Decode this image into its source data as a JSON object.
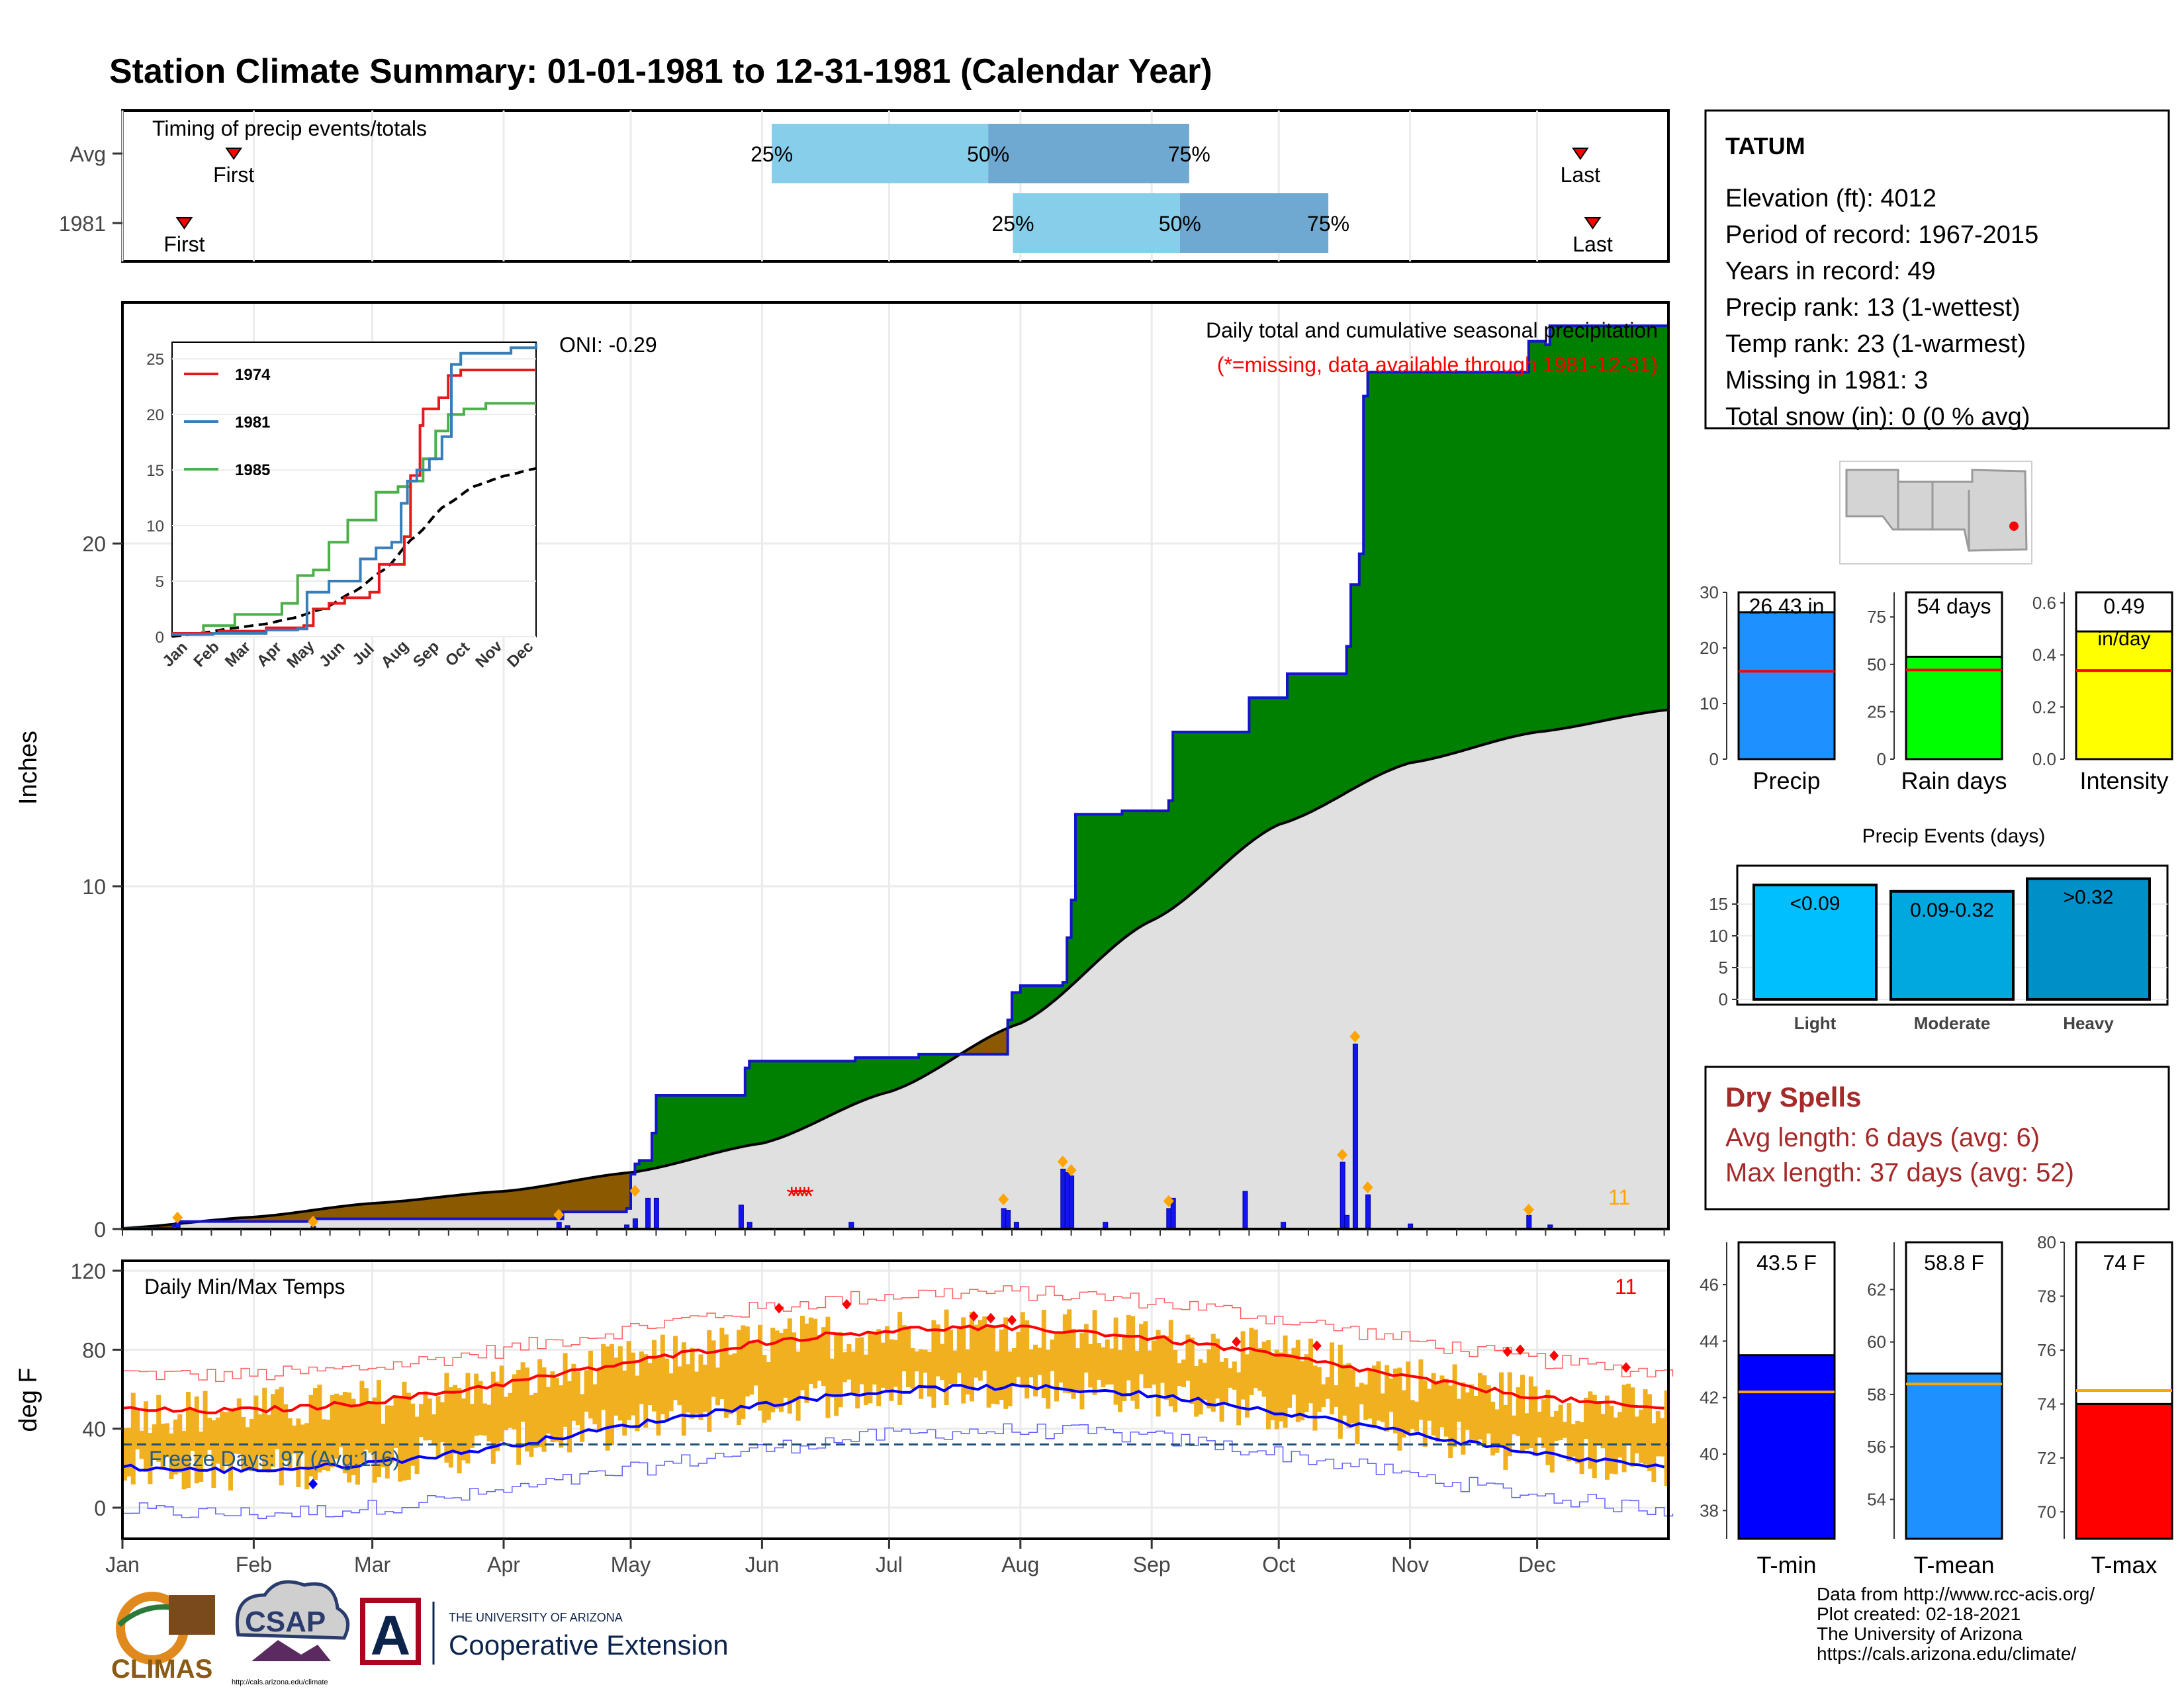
{
  "page_title": "Station Climate Summary: 01-01-1981 to 12-31-1981 (Calendar Year)",
  "colors": {
    "title": "#0a0a84",
    "precip_obs": "#1414cc",
    "wet": "#008000",
    "dry": "#8b5a00",
    "normal_fill": "#e0e0e0",
    "tmax": "#ff0000",
    "tmin": "#0000ff",
    "bars_temp": "#f0b020",
    "light": "#00bfff",
    "moderate": "#00a8e0",
    "heavy": "#0090c8",
    "dry_spell_text": "#a52a2a",
    "orange_marker": "#ffa500"
  },
  "timing": {
    "label": "Timing of precip events/totals",
    "rows": [
      {
        "label": "Avg",
        "first_label": "First",
        "last_label": "Last",
        "first": 0.072,
        "p25": 0.42,
        "p50": 0.56,
        "p75": 0.69,
        "last": 0.943
      },
      {
        "label": "1981",
        "first_label": "First",
        "last_label": "Last",
        "first": 0.04,
        "p25": 0.576,
        "p50": 0.684,
        "p75": 0.78,
        "last": 0.951
      }
    ],
    "pct_labels": [
      "25%",
      "50%",
      "75%"
    ]
  },
  "station": {
    "name": "TATUM",
    "lines": [
      "Elevation (ft): 4012",
      "Period of record: 1967-2015",
      "Years in record: 49",
      "Precip rank: 13 (1-wettest)",
      "Temp rank: 23 (1-warmest)",
      "Missing in 1981: 3",
      "Total snow (in): 0 (0 % avg)"
    ]
  },
  "precip_chart": {
    "ylabel": "Inches",
    "oni_label": "ONI: -0.29",
    "caption1": "Daily total and cumulative seasonal precipitation",
    "caption2": "(*=missing, data available through 1981-12-31)",
    "count_label": "11",
    "y_ticks": [
      "0",
      "10",
      "20"
    ],
    "months": [
      "Jan",
      "Feb",
      "Mar",
      "Apr",
      "May",
      "Jun",
      "Jul",
      "Aug",
      "Sep",
      "Oct",
      "Nov",
      "Dec"
    ]
  },
  "inset": {
    "legend": [
      "1974",
      "1981",
      "1985"
    ],
    "legend_colors": [
      "#e41a1c",
      "#377eb8",
      "#4daf4a"
    ],
    "y_ticks": [
      "0",
      "5",
      "10",
      "15",
      "20",
      "25"
    ],
    "months": [
      "Jan",
      "Feb",
      "Mar",
      "Apr",
      "May",
      "Jun",
      "Jul",
      "Aug",
      "Sep",
      "Oct",
      "Nov",
      "Dec"
    ]
  },
  "temp_chart": {
    "title": "Daily Min/Max Temps",
    "ylabel": "deg F",
    "count_label": "11",
    "freeze_label": "Freeze Days: 97 (Avg:116)",
    "y_ticks": [
      "0",
      "40",
      "80",
      "120"
    ],
    "months": [
      "Jan",
      "Feb",
      "Mar",
      "Apr",
      "May",
      "Jun",
      "Jul",
      "Aug",
      "Sep",
      "Oct",
      "Nov",
      "Dec"
    ]
  },
  "summary_bars": [
    {
      "label": "Precip",
      "value_label": "26.43 in",
      "color": "#1e90ff",
      "y_ticks": [
        "0",
        "10",
        "20",
        "30"
      ],
      "value": 26.43,
      "avg": 15.8,
      "max": 30
    },
    {
      "label": "Rain days",
      "value_label": "54 days",
      "color": "#00ff00",
      "y_ticks": [
        "0",
        "25",
        "50",
        "75"
      ],
      "value": 54,
      "avg": 47,
      "max": 88
    },
    {
      "label": "Intensity",
      "value_label": "0.49",
      "value_label2": "in/day",
      "color": "#ffff00",
      "y_ticks": [
        "0.0",
        "0.2",
        "0.4",
        "0.6"
      ],
      "value": 0.49,
      "avg": 0.34,
      "max": 0.64
    }
  ],
  "precip_events": {
    "title": "Precip Events (days)",
    "y_ticks": [
      "0",
      "5",
      "10",
      "15"
    ],
    "bars": [
      {
        "label": "Light",
        "value_label": "<0.09",
        "value": 18
      },
      {
        "label": "Moderate",
        "value_label": "0.09-0.32",
        "value": 17
      },
      {
        "label": "Heavy",
        "value_label": ">0.32",
        "value": 19
      }
    ],
    "max": 20
  },
  "dry_spells": {
    "title": "Dry Spells",
    "avg_line": "Avg length: 6 days (avg: 6)",
    "max_line": "Max length: 37 days (avg: 52)"
  },
  "temp_bars": [
    {
      "label": "T-min",
      "value_label": "43.5 F",
      "color": "#0000ff",
      "y_ticks": [
        "38",
        "40",
        "42",
        "44",
        "46"
      ],
      "ymin": 37,
      "ymax": 47.5,
      "value": 43.5,
      "avg": 42.2
    },
    {
      "label": "T-mean",
      "value_label": "58.8 F",
      "color": "#1e90ff",
      "y_ticks": [
        "54",
        "56",
        "58",
        "60",
        "62"
      ],
      "ymin": 52.5,
      "ymax": 63.8,
      "value": 58.8,
      "avg": 58.4
    },
    {
      "label": "T-max",
      "value_label": "74 F",
      "color": "#ff0000",
      "y_ticks": [
        "70",
        "72",
        "74",
        "76",
        "78",
        "80"
      ],
      "ymin": 69,
      "ymax": 80,
      "value": 74,
      "avg": 74.5
    }
  ],
  "footer": {
    "credits": [
      "Data from http://www.rcc-acis.org/",
      "Plot created: 02-18-2021",
      "The University of Arizona",
      "https://cals.arizona.edu/climate/"
    ],
    "logo_climas": "CLIMAS",
    "logo_csap": "CSAP",
    "ua_small": "THE UNIVERSITY OF ARIZONA",
    "ua_big": "Cooperative Extension",
    "ua_letter": "A",
    "csap_url": "http://cals.arizona.edu/climate"
  },
  "chart_data": [
    {
      "type": "line",
      "title": "Daily total and cumulative seasonal precipitation",
      "ylabel": "Inches",
      "ylim": [
        0,
        26.5
      ],
      "x": [
        "Jan",
        "Feb",
        "Mar",
        "Apr",
        "May",
        "Jun",
        "Jul",
        "Aug",
        "Sep",
        "Oct",
        "Nov",
        "Dec"
      ],
      "series": [
        {
          "name": "1981 cumulative",
          "values": [
            0.2,
            0.2,
            0.2,
            0.5,
            0.6,
            4.9,
            4.9,
            6.1,
            14.5,
            25.0,
            25.2,
            26.4
          ]
        },
        {
          "name": "Normal cumulative",
          "values": [
            0.3,
            0.7,
            1.1,
            1.6,
            2.2,
            3.5,
            5.3,
            8.5,
            11.8,
            13.5,
            14.5,
            15.1
          ]
        }
      ]
    },
    {
      "type": "line",
      "title": "",
      "ylim": [
        0,
        26
      ],
      "x": [
        "Jan",
        "Feb",
        "Mar",
        "Apr",
        "May",
        "Jun",
        "Jul",
        "Aug",
        "Sep",
        "Oct",
        "Nov",
        "Dec"
      ],
      "series": [
        {
          "name": "1974",
          "values": [
            0.5,
            0.5,
            0.7,
            1.5,
            2.5,
            3.0,
            4.5,
            9.0,
            22.0,
            24.0,
            24.0,
            24.0
          ]
        },
        {
          "name": "1981",
          "values": [
            0.2,
            0.2,
            0.3,
            0.5,
            0.7,
            5.0,
            5.0,
            7.0,
            15.0,
            25.5,
            25.5,
            26.4
          ]
        },
        {
          "name": "1985",
          "values": [
            0.2,
            1.0,
            2.0,
            3.0,
            6.5,
            13.0,
            13.5,
            14.0,
            18.0,
            20.5,
            21.0,
            21.0
          ]
        }
      ]
    },
    {
      "type": "line",
      "title": "Daily Min/Max Temps",
      "ylabel": "deg F",
      "ylim": [
        -10,
        120
      ],
      "x": [
        "Jan",
        "Feb",
        "Mar",
        "Apr",
        "May",
        "Jun",
        "Jul",
        "Aug",
        "Sep",
        "Oct",
        "Nov",
        "Dec"
      ],
      "series": [
        {
          "name": "Avg max",
          "values": [
            53,
            58,
            65,
            73,
            82,
            91,
            92,
            90,
            86,
            77,
            64,
            56
          ]
        },
        {
          "name": "Avg min",
          "values": [
            22,
            25,
            30,
            38,
            47,
            57,
            62,
            61,
            55,
            43,
            30,
            23
          ]
        }
      ]
    },
    {
      "type": "bar",
      "categories": [
        "Precip",
        "Rain days",
        "Intensity"
      ],
      "values": [
        26.43,
        54,
        0.49
      ]
    },
    {
      "type": "bar",
      "title": "Precip Events (days)",
      "categories": [
        "Light",
        "Moderate",
        "Heavy"
      ],
      "values": [
        18,
        17,
        19
      ]
    },
    {
      "type": "bar",
      "categories": [
        "T-min",
        "T-mean",
        "T-max"
      ],
      "values": [
        43.5,
        58.8,
        74
      ]
    }
  ]
}
